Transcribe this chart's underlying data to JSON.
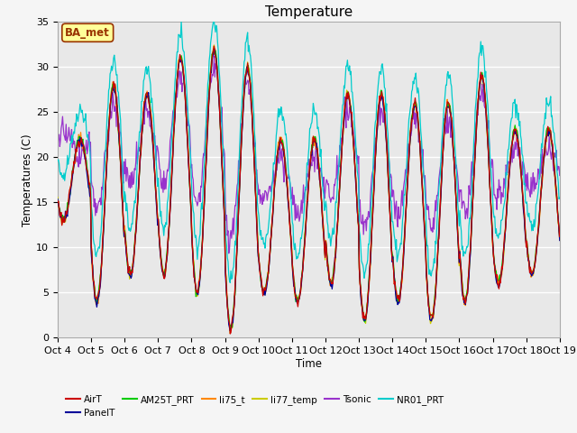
{
  "title": "Temperature",
  "xlabel": "Time",
  "ylabel": "Temperatures (C)",
  "annotation": "BA_met",
  "ylim": [
    0,
    35
  ],
  "x_tick_labels": [
    "Oct 4",
    "Oct 5",
    "Oct 6",
    "Oct 7",
    "Oct 8",
    "Oct 9",
    "Oct 10",
    "Oct 11",
    "Oct 12",
    "Oct 13",
    "Oct 14",
    "Oct 15",
    "Oct 16",
    "Oct 17",
    "Oct 18",
    "Oct 19"
  ],
  "series_colors": {
    "AirT": "#cc0000",
    "PanelT": "#000099",
    "AM25T_PRT": "#00cc00",
    "li75_t": "#ff8800",
    "li77_temp": "#cccc00",
    "Tsonic": "#9933cc",
    "NR01_PRT": "#00cccc"
  },
  "fig_bg_color": "#f5f5f5",
  "plot_bg_color": "#e8e8e8",
  "annotation_bg": "#ffff99",
  "annotation_border": "#993300",
  "annotation_text_color": "#993300",
  "grid_color": "#ffffff"
}
